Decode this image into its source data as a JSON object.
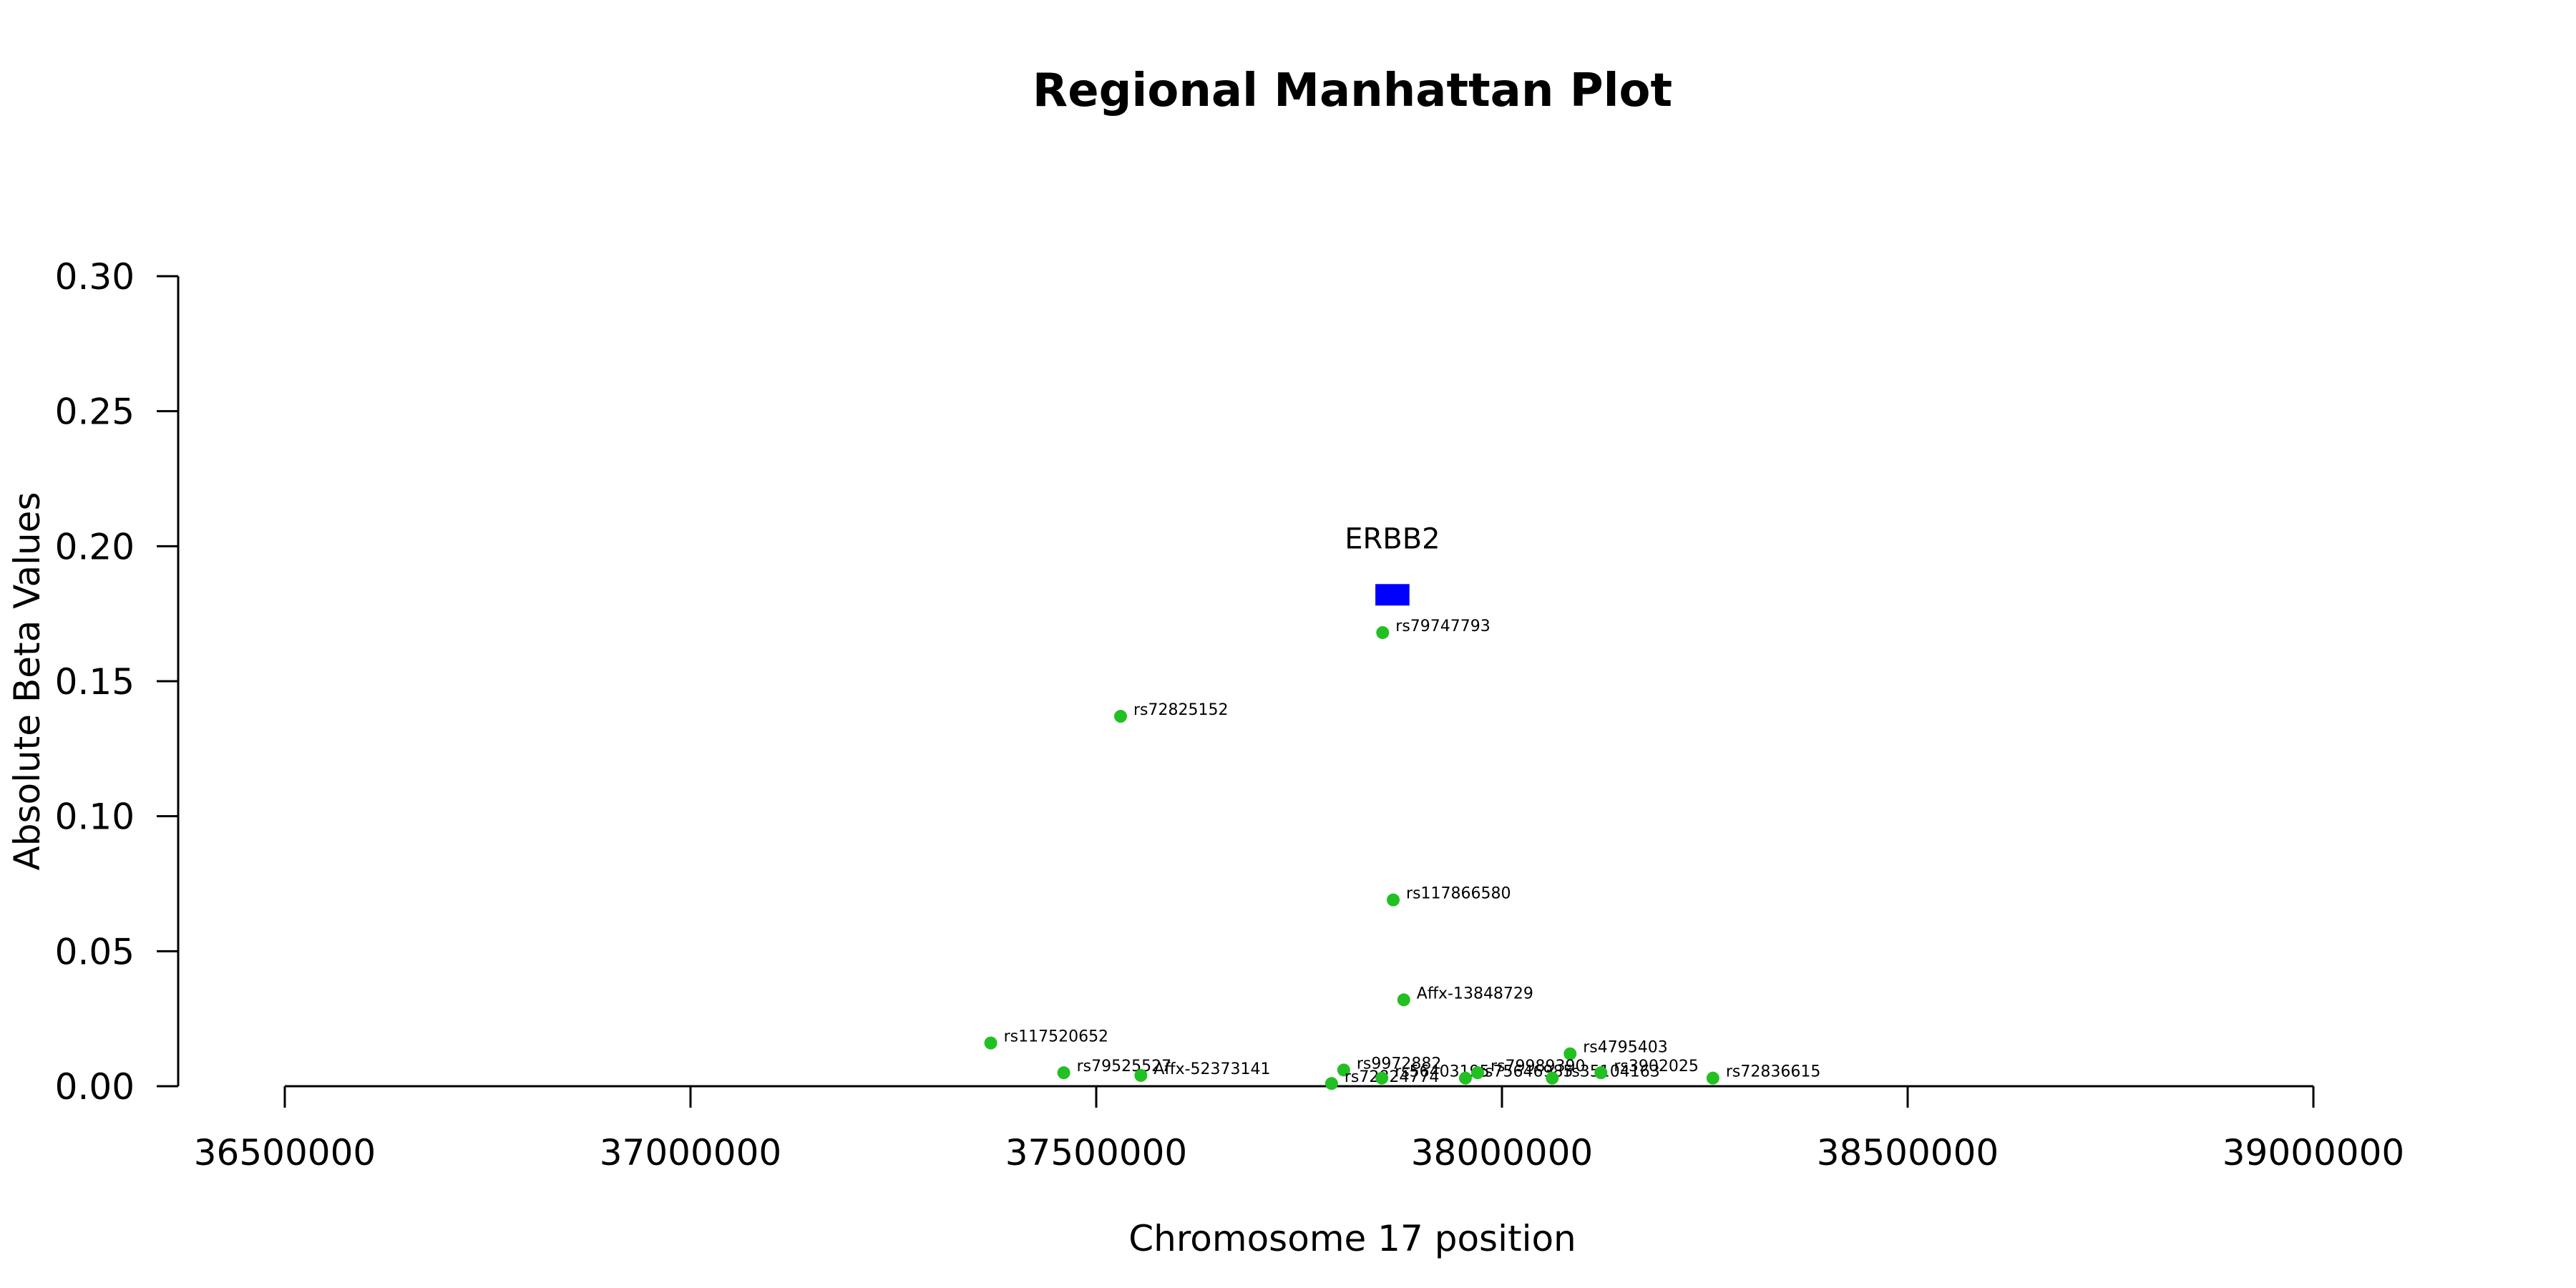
{
  "chart_data": {
    "type": "scatter",
    "title": "Regional Manhattan Plot",
    "xlabel": "Chromosome 17 position",
    "ylabel": "Absolute Beta Values",
    "xlim": [
      36500000,
      39000000
    ],
    "ylim": [
      0,
      0.3
    ],
    "x_ticks": [
      36500000,
      37000000,
      37500000,
      38000000,
      38500000,
      39000000
    ],
    "x_tick_labels": [
      "36500000",
      "37000000",
      "37500000",
      "38000000",
      "38500000",
      "39000000"
    ],
    "y_ticks": [
      0,
      0.05,
      0.1,
      0.15,
      0.2,
      0.25,
      0.3
    ],
    "y_tick_labels": [
      "0.00",
      "0.05",
      "0.10",
      "0.15",
      "0.20",
      "0.25",
      "0.30"
    ],
    "point_color": "#22c022",
    "gene_color": "#0000ff",
    "gene": {
      "name": "ERBB2",
      "start": 37844000,
      "end": 37886000,
      "y": 0.182
    },
    "points": [
      {
        "label": "rs79747793",
        "x": 37853000,
        "y": 0.168
      },
      {
        "label": "rs72825152",
        "x": 37530000,
        "y": 0.137
      },
      {
        "label": "rs117866580",
        "x": 37866000,
        "y": 0.069
      },
      {
        "label": "Affx-13848729",
        "x": 37879000,
        "y": 0.032
      },
      {
        "label": "rs117520652",
        "x": 37370000,
        "y": 0.016
      },
      {
        "label": "rs4795403",
        "x": 38084000,
        "y": 0.012
      },
      {
        "label": "rs79525527",
        "x": 37460000,
        "y": 0.005
      },
      {
        "label": "Affx-52373141",
        "x": 37555000,
        "y": 0.004
      },
      {
        "label": "rs9972882",
        "x": 37805000,
        "y": 0.006
      },
      {
        "label": "rs72824774",
        "x": 37790000,
        "y": 0.001
      },
      {
        "label": "rs56403195",
        "x": 37852000,
        "y": 0.003
      },
      {
        "label": "rs75646985",
        "x": 37955000,
        "y": 0.003
      },
      {
        "label": "rs79989390",
        "x": 37970000,
        "y": 0.005
      },
      {
        "label": "rs35104163",
        "x": 38062000,
        "y": 0.003
      },
      {
        "label": "rs3902025",
        "x": 38122000,
        "y": 0.005
      },
      {
        "label": "rs72836615",
        "x": 38260000,
        "y": 0.003
      }
    ]
  }
}
